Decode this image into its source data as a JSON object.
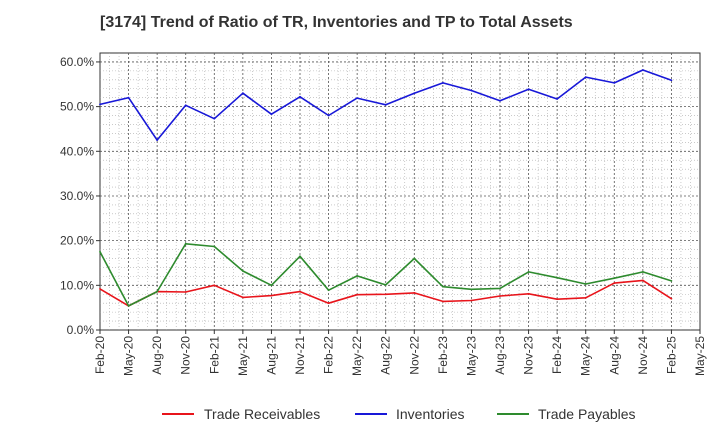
{
  "chart_data": {
    "type": "line",
    "title": "[3174]  Trend of Ratio of TR, Inventories and TP to Total Assets",
    "xlabel": "",
    "ylabel": "",
    "ylim": [
      0,
      62
    ],
    "yticks": [
      "0.0%",
      "10.0%",
      "20.0%",
      "30.0%",
      "40.0%",
      "50.0%",
      "60.0%"
    ],
    "ytick_values": [
      0,
      10,
      20,
      30,
      40,
      50,
      60
    ],
    "grid": true,
    "legend_position": "bottom",
    "x_tick_labels": [
      "Feb-20",
      "May-20",
      "Aug-20",
      "Nov-20",
      "Feb-21",
      "May-21",
      "Aug-21",
      "Nov-21",
      "Feb-22",
      "May-22",
      "Aug-22",
      "Nov-22",
      "Feb-23",
      "May-23",
      "Aug-23",
      "Nov-23",
      "Feb-24",
      "May-24",
      "Aug-24",
      "Nov-24",
      "Feb-25",
      "May-25"
    ],
    "x": [
      "Feb-20",
      "May-20",
      "Aug-20",
      "Nov-20",
      "Feb-21",
      "May-21",
      "Aug-21",
      "Nov-21",
      "Feb-22",
      "May-22",
      "Aug-22",
      "Nov-22",
      "Feb-23",
      "May-23",
      "Aug-23",
      "Nov-23",
      "Feb-24",
      "May-24",
      "Aug-24",
      "Nov-24",
      "Feb-25"
    ],
    "series": [
      {
        "name": "Trade Receivables",
        "color": "#e8141b",
        "values": [
          9.2,
          5.4,
          8.6,
          8.5,
          10.0,
          7.3,
          7.7,
          8.6,
          6.0,
          7.9,
          8.0,
          8.3,
          6.4,
          6.6,
          7.6,
          8.1,
          6.9,
          7.2,
          10.5,
          11.1,
          7.0
        ]
      },
      {
        "name": "Inventories",
        "color": "#1818d8",
        "values": [
          50.5,
          52.0,
          42.5,
          50.3,
          47.3,
          53.0,
          48.3,
          52.2,
          48.0,
          51.9,
          50.4,
          53.0,
          55.3,
          53.6,
          51.3,
          53.9,
          51.7,
          56.6,
          55.3,
          58.2,
          55.9
        ]
      },
      {
        "name": "Trade Payables",
        "color": "#2e8b2e",
        "values": [
          17.5,
          5.4,
          8.6,
          19.3,
          18.7,
          13.2,
          10.0,
          16.5,
          8.9,
          12.1,
          10.1,
          16.0,
          9.7,
          9.1,
          9.3,
          13.0,
          11.7,
          10.3,
          11.6,
          13.0,
          11.0
        ]
      }
    ]
  }
}
